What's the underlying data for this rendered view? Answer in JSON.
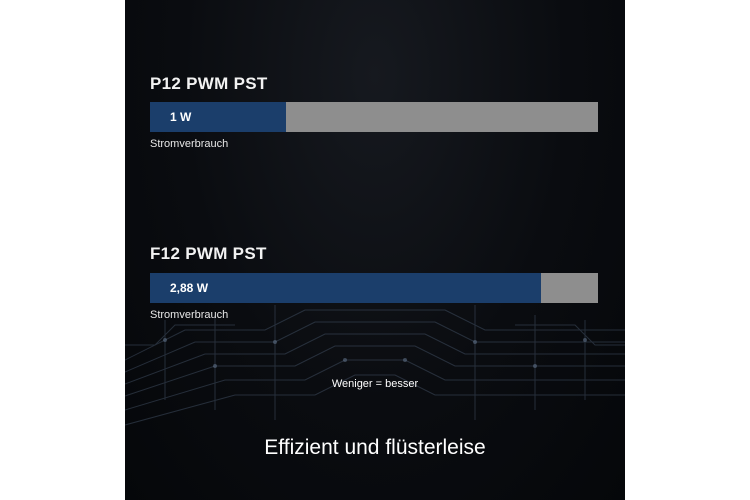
{
  "chart_data": {
    "type": "bar",
    "orientation": "horizontal",
    "categories": [
      "P12 PWM PST",
      "F12 PWM PST"
    ],
    "values": [
      1,
      2.88
    ],
    "value_labels": [
      "1 W",
      "2,88 W"
    ],
    "metric_label": "Stromverbrauch",
    "unit": "W",
    "xlim": [
      0,
      3.3
    ],
    "grid": false,
    "colors": {
      "fill": "#1b3e6b",
      "track": "#8e8e8e"
    }
  },
  "footer": {
    "note": "Weniger = besser",
    "tagline": "Effizient und flüsterleise"
  }
}
